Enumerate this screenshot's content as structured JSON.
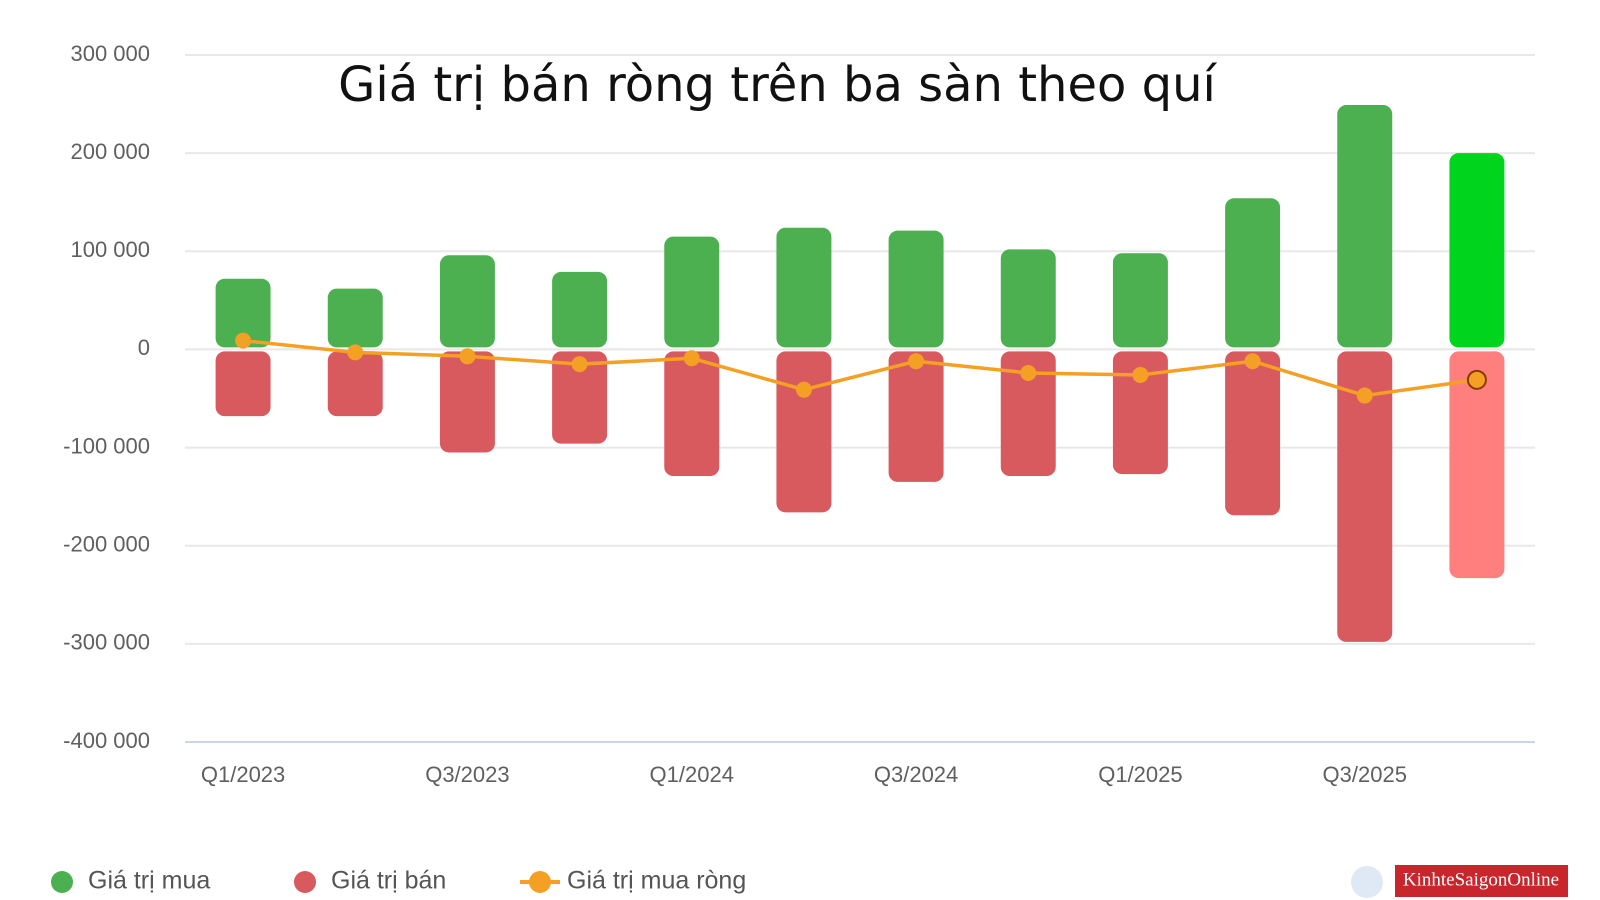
{
  "chart_data": {
    "type": "bar-line",
    "title": "Giá trị bán ròng trên ba sàn theo quí",
    "categories": [
      "Q1/2023",
      null,
      "Q3/2023",
      null,
      "Q1/2024",
      null,
      "Q3/2024",
      null,
      "Q1/2025",
      null,
      "Q3/2025",
      null
    ],
    "series": [
      {
        "name": "Giá trị mua",
        "type": "bar",
        "color": "#4caf50",
        "colors": [
          "#4caf50",
          "#4caf50",
          "#4caf50",
          "#4caf50",
          "#4caf50",
          "#4caf50",
          "#4caf50",
          "#4caf50",
          "#4caf50",
          "#4caf50",
          "#4caf50",
          "#00d41c"
        ],
        "values": [
          72000,
          62000,
          96000,
          79000,
          115000,
          124000,
          121000,
          102000,
          98000,
          154000,
          249000,
          200000
        ]
      },
      {
        "name": "Giá trị bán",
        "type": "bar",
        "color": "#d85a5e",
        "colors": [
          "#d85a5e",
          "#d85a5e",
          "#d85a5e",
          "#d85a5e",
          "#d85a5e",
          "#d85a5e",
          "#d85a5e",
          "#d85a5e",
          "#d85a5e",
          "#d85a5e",
          "#d85a5e",
          "#ff7f7f"
        ],
        "values": [
          -68000,
          -68000,
          -105000,
          -96000,
          -129000,
          -166000,
          -135000,
          -129000,
          -127000,
          -169000,
          -298000,
          -233000
        ]
      },
      {
        "name": "Giá trị mua ròng",
        "type": "line",
        "color": "#f4a024",
        "last_marker_stroke": "#8a3b00",
        "values": [
          9000,
          -3000,
          -7000,
          -15000,
          -9000,
          -41000,
          -12000,
          -24000,
          -26000,
          -12000,
          -47000,
          -31000
        ]
      }
    ],
    "ylim": [
      -400000,
      300000
    ],
    "yticks": [
      {
        "value": -400000,
        "label": "-400 000"
      },
      {
        "value": -300000,
        "label": "-300 000"
      },
      {
        "value": -200000,
        "label": "-200 000"
      },
      {
        "value": -100000,
        "label": "-100 000"
      },
      0,
      {
        "value": 100000,
        "label": "100 000"
      },
      {
        "value": 200000,
        "label": "200 000"
      },
      {
        "value": 300000,
        "label": "300 000"
      }
    ],
    "grid": true,
    "legend": "bottom-left"
  },
  "logo": "KinhteSaigonOnline"
}
